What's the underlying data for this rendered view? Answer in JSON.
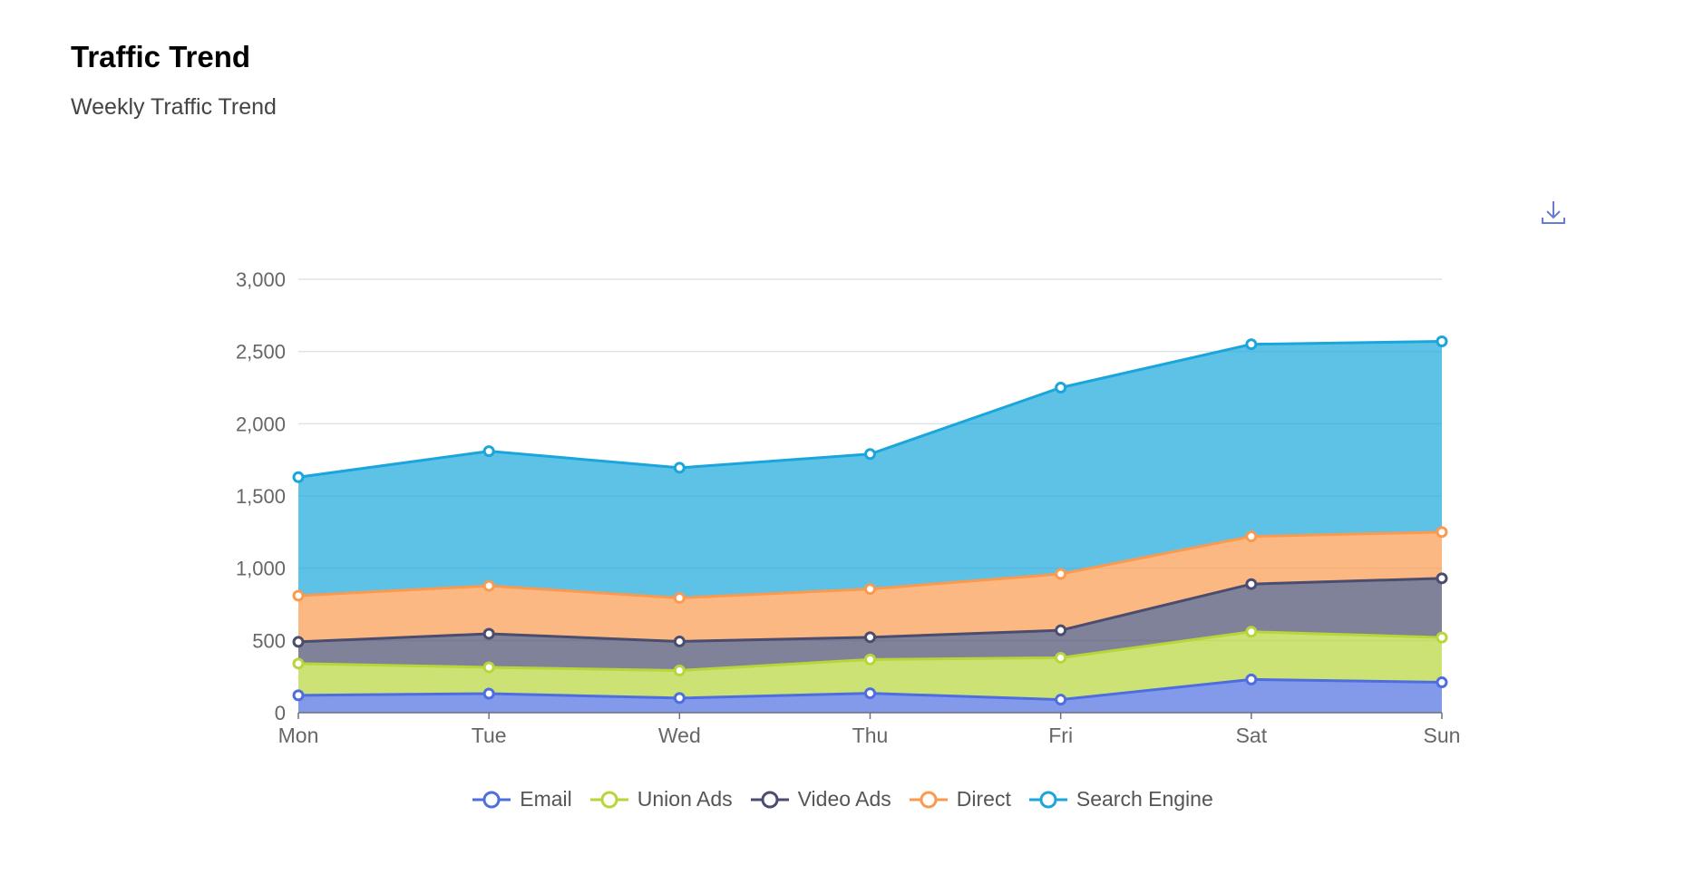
{
  "header": {
    "title": "Traffic Trend",
    "subtitle": "Weekly Traffic Trend"
  },
  "toolbox": {
    "download_icon": "download-icon"
  },
  "chart_data": {
    "type": "area",
    "stacked": true,
    "categories": [
      "Mon",
      "Tue",
      "Wed",
      "Thu",
      "Fri",
      "Sat",
      "Sun"
    ],
    "ylim": [
      0,
      3000
    ],
    "yticks": [
      0,
      500,
      1000,
      1500,
      2000,
      2500,
      3000
    ],
    "ytick_labels": [
      "0",
      "500",
      "1,000",
      "1,500",
      "2,000",
      "2,500",
      "3,000"
    ],
    "grid": true,
    "legend_position": "bottom",
    "series": [
      {
        "name": "Email",
        "color": "#4e6ee0",
        "values": [
          120,
          132,
          101,
          134,
          90,
          230,
          210
        ]
      },
      {
        "name": "Union Ads",
        "color": "#b6d63a",
        "values": [
          220,
          182,
          191,
          234,
          290,
          330,
          310
        ]
      },
      {
        "name": "Video Ads",
        "color": "#4a4d6e",
        "values": [
          150,
          232,
          201,
          154,
          190,
          330,
          410
        ]
      },
      {
        "name": "Direct",
        "color": "#fb9a4f",
        "values": [
          320,
          332,
          301,
          334,
          390,
          330,
          320
        ]
      },
      {
        "name": "Search Engine",
        "color": "#1aa6dc",
        "values": [
          820,
          932,
          901,
          934,
          1290,
          1330,
          1320
        ]
      }
    ]
  }
}
